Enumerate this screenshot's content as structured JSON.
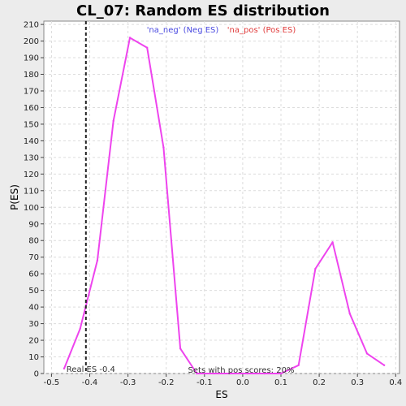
{
  "chart_data": {
    "type": "line",
    "title": "CL_07: Random ES distribution",
    "xlabel": "ES",
    "ylabel": "P(ES)",
    "xlim": [
      -0.52,
      0.41
    ],
    "ylim": [
      0,
      212
    ],
    "xticks": [
      -0.5,
      -0.4,
      -0.3,
      -0.2,
      -0.1,
      0.0,
      0.1,
      0.2,
      0.3,
      0.4
    ],
    "xtick_labels": [
      "-0.5",
      "-0.4",
      "-0.3",
      "-0.2",
      "-0.1",
      "0.0",
      "0.1",
      "0.2",
      "0.3",
      "0.4"
    ],
    "yticks": [
      0,
      10,
      20,
      30,
      40,
      50,
      60,
      70,
      80,
      90,
      100,
      110,
      120,
      130,
      140,
      150,
      160,
      170,
      180,
      190,
      200,
      210
    ],
    "grid": true,
    "legend": [
      {
        "label": "'na_neg' (Neg ES)",
        "color": "#4a4ae0"
      },
      {
        "label": "'na_pos' (Pos ES)",
        "color": "#e03c3c"
      }
    ],
    "legend_position": "top",
    "series": [
      {
        "color": "#ee44ee",
        "x": [
          -0.467,
          -0.425,
          -0.38,
          -0.338,
          -0.295,
          -0.25,
          -0.207,
          -0.163,
          -0.12,
          -0.075,
          -0.032,
          0.012,
          0.057,
          0.1,
          0.146,
          0.19,
          0.235,
          0.28,
          0.325,
          0.37
        ],
        "y": [
          3,
          27,
          68,
          152,
          202,
          196,
          136,
          15,
          0,
          0,
          0,
          0,
          0,
          0,
          5,
          63,
          79,
          36,
          12,
          5
        ]
      }
    ],
    "vline": {
      "x": -0.41,
      "label": "Real ES -0.4"
    },
    "annotation": "Sets with pos scores: 20%"
  }
}
